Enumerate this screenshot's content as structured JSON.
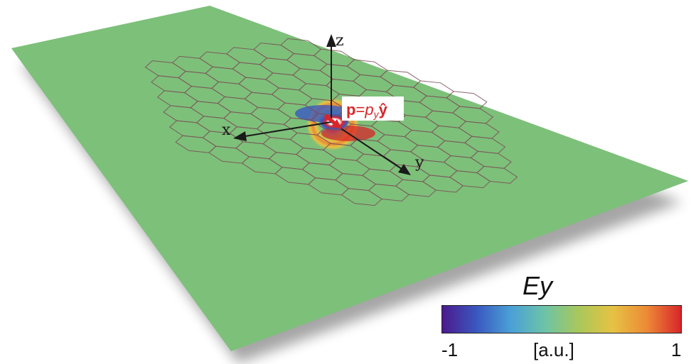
{
  "axes": {
    "x": "x",
    "y": "y",
    "z": "z"
  },
  "dipole_label": {
    "p": "p",
    "equals": "=",
    "p_symbol": "p",
    "p_sub": "y",
    "y_hat": "ŷ"
  },
  "colorbar": {
    "title": "Ey",
    "min_label": "-1",
    "unit_label": "[a.u.]",
    "max_label": "1",
    "min": -1,
    "max": 1,
    "colors": [
      "#4b1a8c",
      "#3a57c0",
      "#4aa0d6",
      "#6cc3a8",
      "#a8c85a",
      "#e6c243",
      "#ec8a36",
      "#d8262a"
    ]
  },
  "colors": {
    "dipole_red": "#d8262a",
    "lattice": "#7a4a55",
    "axis": "#1a1a1a",
    "plane_base": "#7dc07a"
  }
}
